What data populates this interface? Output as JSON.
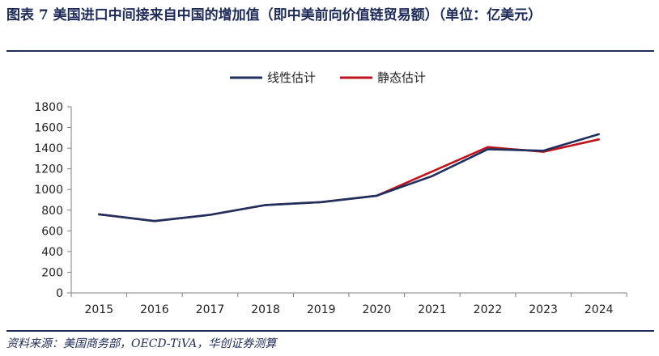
{
  "header": {
    "title": "图表 7  美国进口中间接来自中国的增加值（即中美前向价值链贸易额）（单位：亿美元）"
  },
  "footer": {
    "source": "资料来源：美国商务部，OECD-TiVA，华创证券测算"
  },
  "colors": {
    "accent": "#1e2a57",
    "series_linear": "#1f2f5e",
    "series_static": "#c0141c"
  },
  "chart_data": {
    "type": "line",
    "categories": [
      "2015",
      "2016",
      "2017",
      "2018",
      "2019",
      "2020",
      "2021",
      "2022",
      "2023",
      "2024"
    ],
    "series": [
      {
        "name": "线性估计",
        "values": [
          760,
          695,
          755,
          850,
          878,
          940,
          1130,
          1390,
          1375,
          1535
        ]
      },
      {
        "name": "静态估计",
        "values": [
          760,
          695,
          755,
          850,
          878,
          940,
          1175,
          1410,
          1365,
          1485
        ]
      }
    ],
    "yticks": [
      "0",
      "200",
      "400",
      "600",
      "800",
      "1000",
      "1200",
      "1400",
      "1600",
      "1800"
    ],
    "ylim": [
      0,
      1800
    ],
    "grid": false,
    "legend_position": "top-center"
  }
}
